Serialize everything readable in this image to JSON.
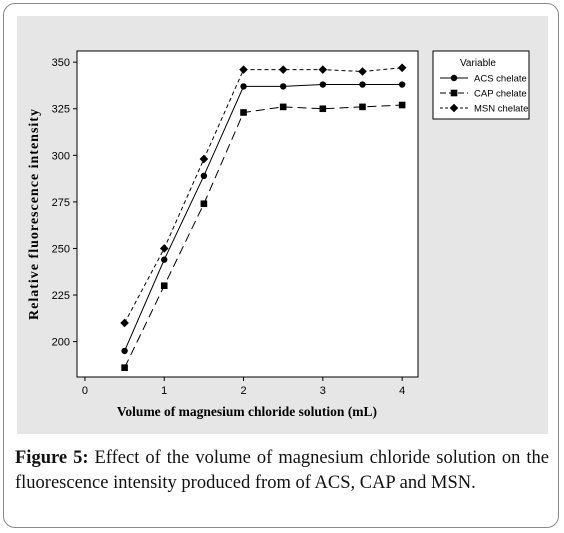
{
  "caption": {
    "label": "Figure 5:",
    "text": " Effect of the volume of magnesium chloride solution on the fluorescence intensity produced from of ACS, CAP and MSN."
  },
  "chart_data": {
    "type": "line",
    "title": "",
    "xlabel": "Volume of magnesium chloride solution (mL)",
    "ylabel": "Relative fluorescence intensity",
    "xlim": [
      -0.1,
      4.2
    ],
    "ylim": [
      181,
      356
    ],
    "xticks": [
      0,
      1,
      2,
      3,
      4
    ],
    "yticks": [
      200,
      225,
      250,
      275,
      300,
      325,
      350
    ],
    "grid": false,
    "legend": {
      "title": "Variable",
      "placement": "right-outside"
    },
    "x": [
      0.5,
      1.0,
      1.5,
      2.0,
      2.5,
      3.0,
      3.5,
      4.0
    ],
    "series": [
      {
        "name": "ACS chelate",
        "marker": "circle",
        "line": "solid",
        "values": [
          195,
          244,
          289,
          337,
          337,
          338,
          338,
          338
        ]
      },
      {
        "name": "CAP chelate",
        "marker": "square",
        "line": "long-dash",
        "values": [
          186,
          230,
          274,
          323,
          326,
          325,
          326,
          327
        ]
      },
      {
        "name": "MSN chelate",
        "marker": "diamond",
        "line": "short-dash",
        "values": [
          210,
          250,
          298,
          346,
          346,
          346,
          345,
          347
        ]
      }
    ],
    "colors": {
      "line": "#000000",
      "panel": "#e6e6e6",
      "plot": "#ffffff"
    }
  }
}
